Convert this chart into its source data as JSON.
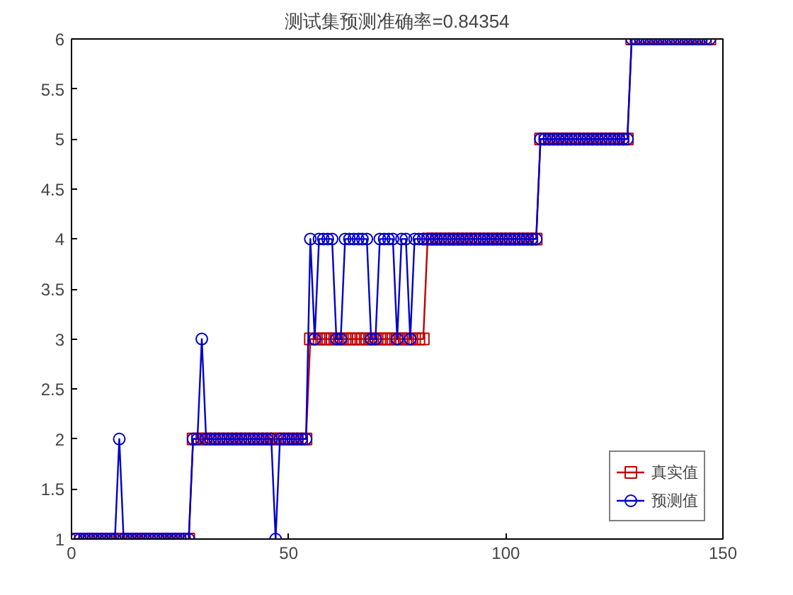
{
  "chart_data": {
    "type": "line",
    "title": "测试集预测准确率=0.84354",
    "x": [
      1,
      2,
      3,
      4,
      5,
      6,
      7,
      8,
      9,
      10,
      11,
      12,
      13,
      14,
      15,
      16,
      17,
      18,
      19,
      20,
      21,
      22,
      23,
      24,
      25,
      26,
      27,
      28,
      29,
      30,
      31,
      32,
      33,
      34,
      35,
      36,
      37,
      38,
      39,
      40,
      41,
      42,
      43,
      44,
      45,
      46,
      47,
      48,
      49,
      50,
      51,
      52,
      53,
      54,
      55,
      56,
      57,
      58,
      59,
      60,
      61,
      62,
      63,
      64,
      65,
      66,
      67,
      68,
      69,
      70,
      71,
      72,
      73,
      74,
      75,
      76,
      77,
      78,
      79,
      80,
      81,
      82,
      83,
      84,
      85,
      86,
      87,
      88,
      89,
      90,
      91,
      92,
      93,
      94,
      95,
      96,
      97,
      98,
      99,
      100,
      101,
      102,
      103,
      104,
      105,
      106,
      107,
      108,
      109,
      110,
      111,
      112,
      113,
      114,
      115,
      116,
      117,
      118,
      119,
      120,
      121,
      122,
      123,
      124,
      125,
      126,
      127,
      128,
      129,
      130,
      131,
      132,
      133,
      134,
      135,
      136,
      137,
      138,
      139,
      140,
      141,
      142,
      143,
      144,
      145,
      146,
      147
    ],
    "series": [
      {
        "name": "真实值",
        "color": "#c00000",
        "marker": "square",
        "values": [
          1,
          1,
          1,
          1,
          1,
          1,
          1,
          1,
          1,
          1,
          1,
          1,
          1,
          1,
          1,
          1,
          1,
          1,
          1,
          1,
          1,
          1,
          1,
          1,
          1,
          1,
          1,
          2,
          2,
          2,
          2,
          2,
          2,
          2,
          2,
          2,
          2,
          2,
          2,
          2,
          2,
          2,
          2,
          2,
          2,
          2,
          2,
          2,
          2,
          2,
          2,
          2,
          2,
          2,
          3,
          3,
          3,
          3,
          3,
          3,
          3,
          3,
          3,
          3,
          3,
          3,
          3,
          3,
          3,
          3,
          3,
          3,
          3,
          3,
          3,
          3,
          3,
          3,
          3,
          3,
          3,
          4,
          4,
          4,
          4,
          4,
          4,
          4,
          4,
          4,
          4,
          4,
          4,
          4,
          4,
          4,
          4,
          4,
          4,
          4,
          4,
          4,
          4,
          4,
          4,
          4,
          4,
          5,
          5,
          5,
          5,
          5,
          5,
          5,
          5,
          5,
          5,
          5,
          5,
          5,
          5,
          5,
          5,
          5,
          5,
          5,
          5,
          5,
          6,
          6,
          6,
          6,
          6,
          6,
          6,
          6,
          6,
          6,
          6,
          6,
          6,
          6,
          6,
          6,
          6,
          6,
          6
        ]
      },
      {
        "name": "预测值",
        "color": "#0000cc",
        "marker": "circle",
        "values": [
          1,
          1,
          1,
          1,
          1,
          1,
          1,
          1,
          1,
          1,
          2,
          1,
          1,
          1,
          1,
          1,
          1,
          1,
          1,
          1,
          1,
          1,
          1,
          1,
          1,
          1,
          1,
          2,
          2,
          3,
          2,
          2,
          2,
          2,
          2,
          2,
          2,
          2,
          2,
          2,
          2,
          2,
          2,
          2,
          2,
          2,
          1,
          2,
          2,
          2,
          2,
          2,
          2,
          2,
          4,
          3,
          4,
          4,
          4,
          4,
          3,
          3,
          4,
          4,
          4,
          4,
          4,
          4,
          3,
          3,
          4,
          4,
          4,
          4,
          3,
          4,
          4,
          3,
          4,
          4,
          4,
          4,
          4,
          4,
          4,
          4,
          4,
          4,
          4,
          4,
          4,
          4,
          4,
          4,
          4,
          4,
          4,
          4,
          4,
          4,
          4,
          4,
          4,
          4,
          4,
          4,
          4,
          5,
          5,
          5,
          5,
          5,
          5,
          5,
          5,
          5,
          5,
          5,
          5,
          5,
          5,
          5,
          5,
          5,
          5,
          5,
          5,
          5,
          6,
          6,
          6,
          6,
          6,
          6,
          6,
          6,
          6,
          6,
          6,
          6,
          6,
          6,
          6,
          6,
          6,
          6,
          6
        ]
      }
    ],
    "xlim": [
      0,
      150
    ],
    "xticks": [
      0,
      50,
      100,
      150
    ],
    "ylim": [
      1,
      6
    ],
    "yticks": [
      1,
      {
        "value": 1.5,
        "label": "1.5"
      },
      2,
      {
        "value": 2.5,
        "label": "2.5"
      },
      3,
      {
        "value": 3.5,
        "label": "3.5"
      },
      4,
      {
        "value": 4.5,
        "label": "4.5"
      },
      5,
      {
        "value": 5.5,
        "label": "5.5"
      },
      6
    ],
    "grid": false,
    "legend": "bottom right"
  }
}
